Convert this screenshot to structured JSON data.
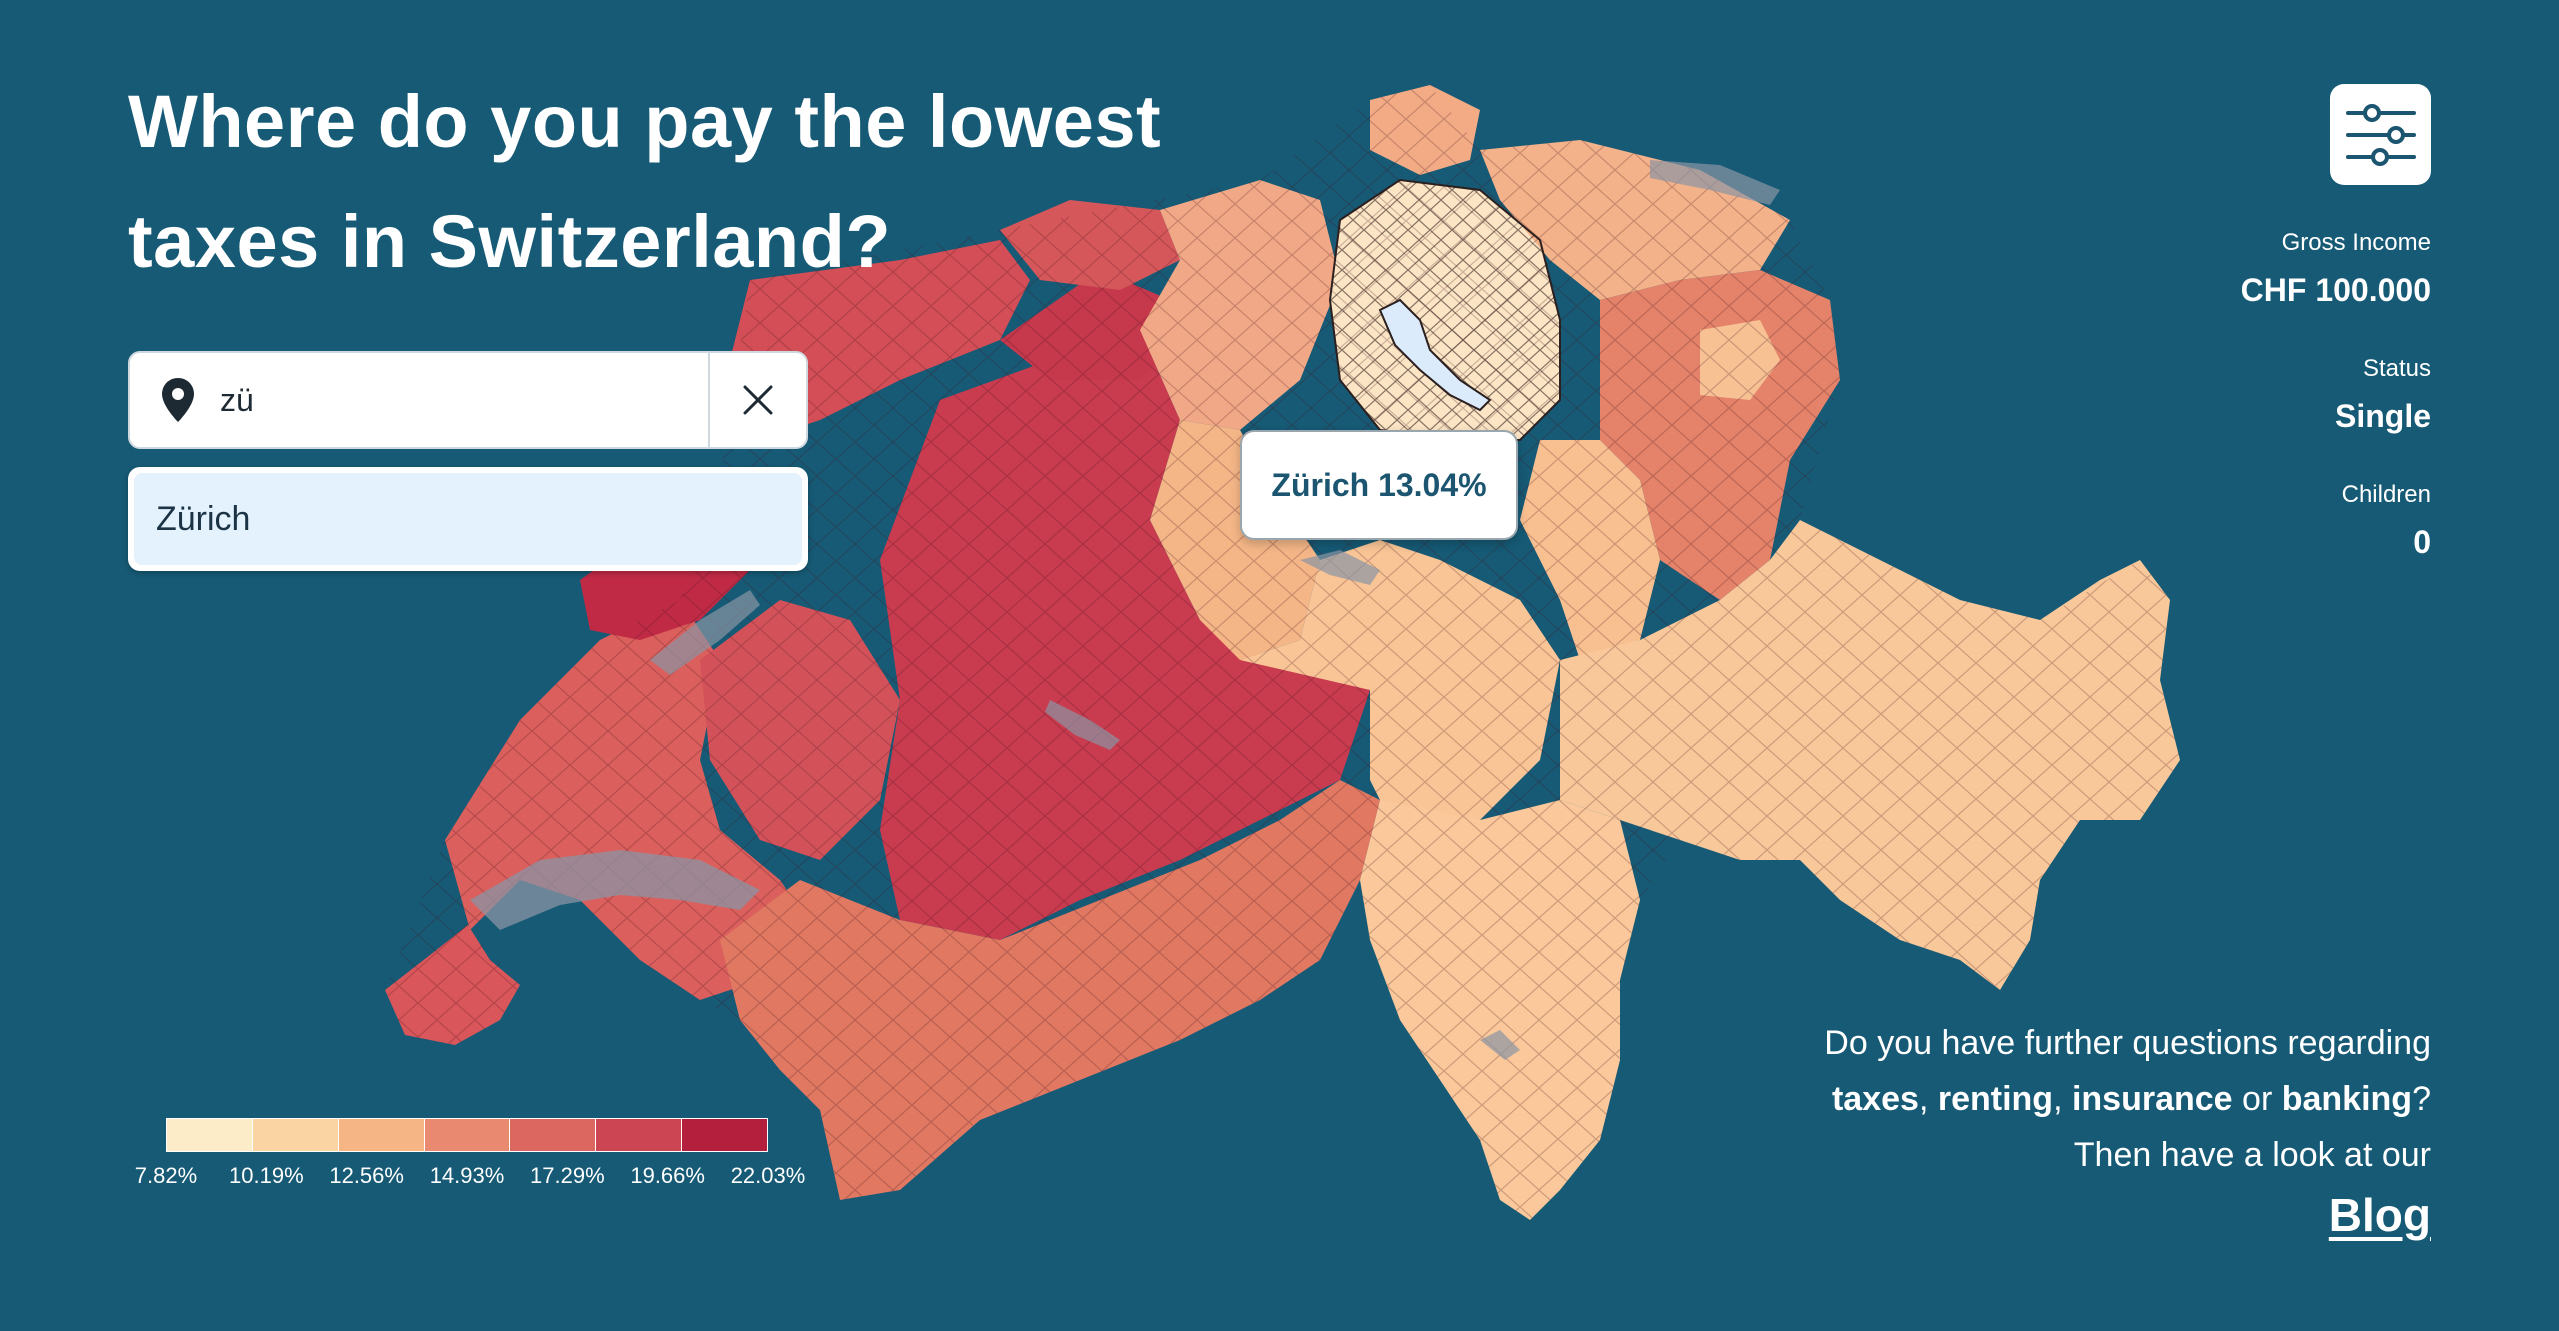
{
  "title": {
    "line1": "Where do you pay the lowest",
    "line2": "taxes in Switzerland?"
  },
  "search": {
    "value": "zü",
    "placeholder": "",
    "suggestions": [
      "Zürich"
    ]
  },
  "tooltip": {
    "text": "Zürich 13.04%"
  },
  "settings": {
    "icon": "sliders-icon",
    "gross_income_label": "Gross Income",
    "gross_income_value": "CHF 100.000",
    "status_label": "Status",
    "status_value": "Single",
    "children_label": "Children",
    "children_value": "0"
  },
  "promo": {
    "line1": "Do you have further questions regarding",
    "kw_taxes": "taxes",
    "kw_renting": "renting",
    "kw_insurance": "insurance",
    "word_or": "or",
    "kw_banking": "banking",
    "line3": "Then have a look at our",
    "blog_label": "Blog"
  },
  "legend": {
    "labels": [
      "7.82%",
      "10.19%",
      "12.56%",
      "14.93%",
      "17.29%",
      "19.66%",
      "22.03%"
    ],
    "colors": [
      "#fdecc8",
      "#fbd4a4",
      "#f5b585",
      "#e98a70",
      "#dc6660",
      "#cc4552",
      "#b41f3d"
    ]
  },
  "colors": {
    "background": "#165a75",
    "accent": "#1b5570"
  }
}
